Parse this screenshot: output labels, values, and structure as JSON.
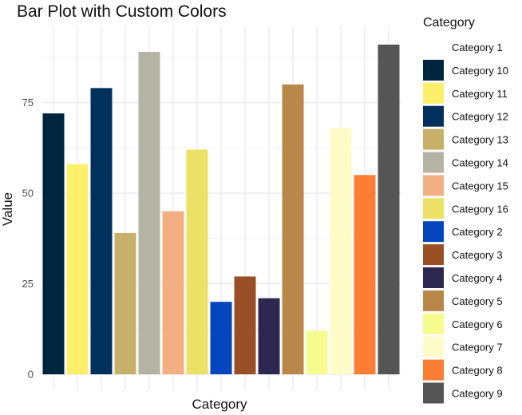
{
  "chart_data": {
    "type": "bar",
    "title": "Bar Plot with Custom Colors",
    "xlabel": "Category",
    "ylabel": "Value",
    "ylim": [
      0,
      94
    ],
    "yticks": [
      0,
      25,
      50,
      75
    ],
    "grid": true,
    "legend": {
      "title": "Category",
      "placement": "right"
    },
    "bars": [
      {
        "category": "Category 10",
        "value": 72,
        "color": "#00253F"
      },
      {
        "category": "Category 11",
        "value": 58,
        "color": "#FCF06B"
      },
      {
        "category": "Category 12",
        "value": 79,
        "color": "#02305C"
      },
      {
        "category": "Category 13",
        "value": 39,
        "color": "#C7B06A"
      },
      {
        "category": "Category 14",
        "value": 89,
        "color": "#B5B3A4"
      },
      {
        "category": "Category 15",
        "value": 45,
        "color": "#F3AF84"
      },
      {
        "category": "Category 16",
        "value": 62,
        "color": "#EBE265"
      },
      {
        "category": "Category 2",
        "value": 20,
        "color": "#0545BE"
      },
      {
        "category": "Category 3",
        "value": 27,
        "color": "#9A5027"
      },
      {
        "category": "Category 4",
        "value": 21,
        "color": "#2C2852"
      },
      {
        "category": "Category 5",
        "value": 80,
        "color": "#B98747"
      },
      {
        "category": "Category 6",
        "value": 12,
        "color": "#F5FB8E"
      },
      {
        "category": "Category 7",
        "value": 68,
        "color": "#FEFDCA"
      },
      {
        "category": "Category 8",
        "value": 55,
        "color": "#FC7E35"
      },
      {
        "category": "Category 9",
        "value": 91,
        "color": "#555555"
      }
    ],
    "legend_entries": [
      {
        "label": "Category 1",
        "color": "#FFFFFF"
      },
      {
        "label": "Category 10",
        "color": "#00253F"
      },
      {
        "label": "Category 11",
        "color": "#FCF06B"
      },
      {
        "label": "Category 12",
        "color": "#02305C"
      },
      {
        "label": "Category 13",
        "color": "#C7B06A"
      },
      {
        "label": "Category 14",
        "color": "#B5B3A4"
      },
      {
        "label": "Category 15",
        "color": "#F3AF84"
      },
      {
        "label": "Category 16",
        "color": "#EBE265"
      },
      {
        "label": "Category 2",
        "color": "#0545BE"
      },
      {
        "label": "Category 3",
        "color": "#9A5027"
      },
      {
        "label": "Category 4",
        "color": "#2C2852"
      },
      {
        "label": "Category 5",
        "color": "#B98747"
      },
      {
        "label": "Category 6",
        "color": "#F5FB8E"
      },
      {
        "label": "Category 7",
        "color": "#FEFDCA"
      },
      {
        "label": "Category 8",
        "color": "#FC7E35"
      },
      {
        "label": "Category 9",
        "color": "#555555"
      }
    ]
  }
}
